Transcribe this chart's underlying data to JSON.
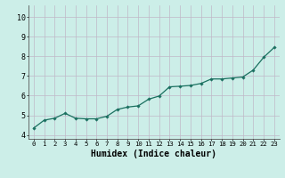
{
  "x": [
    0,
    1,
    2,
    3,
    4,
    5,
    6,
    7,
    8,
    9,
    10,
    11,
    12,
    13,
    14,
    15,
    16,
    17,
    18,
    19,
    20,
    21,
    22,
    23
  ],
  "y": [
    4.35,
    4.75,
    4.85,
    5.1,
    4.85,
    4.82,
    4.82,
    4.95,
    5.3,
    5.42,
    5.48,
    5.82,
    5.98,
    6.45,
    6.48,
    6.52,
    6.62,
    6.85,
    6.85,
    6.9,
    6.95,
    7.3,
    7.95,
    8.45
  ],
  "line_color": "#1a7060",
  "marker_color": "#1a7060",
  "bg_color": "#cceee8",
  "grid_color": "#c0b8c8",
  "xlabel": "Humidex (Indice chaleur)",
  "xlabel_fontsize": 7,
  "tick_fontsize": 6,
  "ylim": [
    3.8,
    10.6
  ],
  "xlim": [
    -0.5,
    23.5
  ],
  "yticks": [
    4,
    5,
    6,
    7,
    8,
    9,
    10
  ],
  "xticks": [
    0,
    1,
    2,
    3,
    4,
    5,
    6,
    7,
    8,
    9,
    10,
    11,
    12,
    13,
    14,
    15,
    16,
    17,
    18,
    19,
    20,
    21,
    22,
    23
  ]
}
